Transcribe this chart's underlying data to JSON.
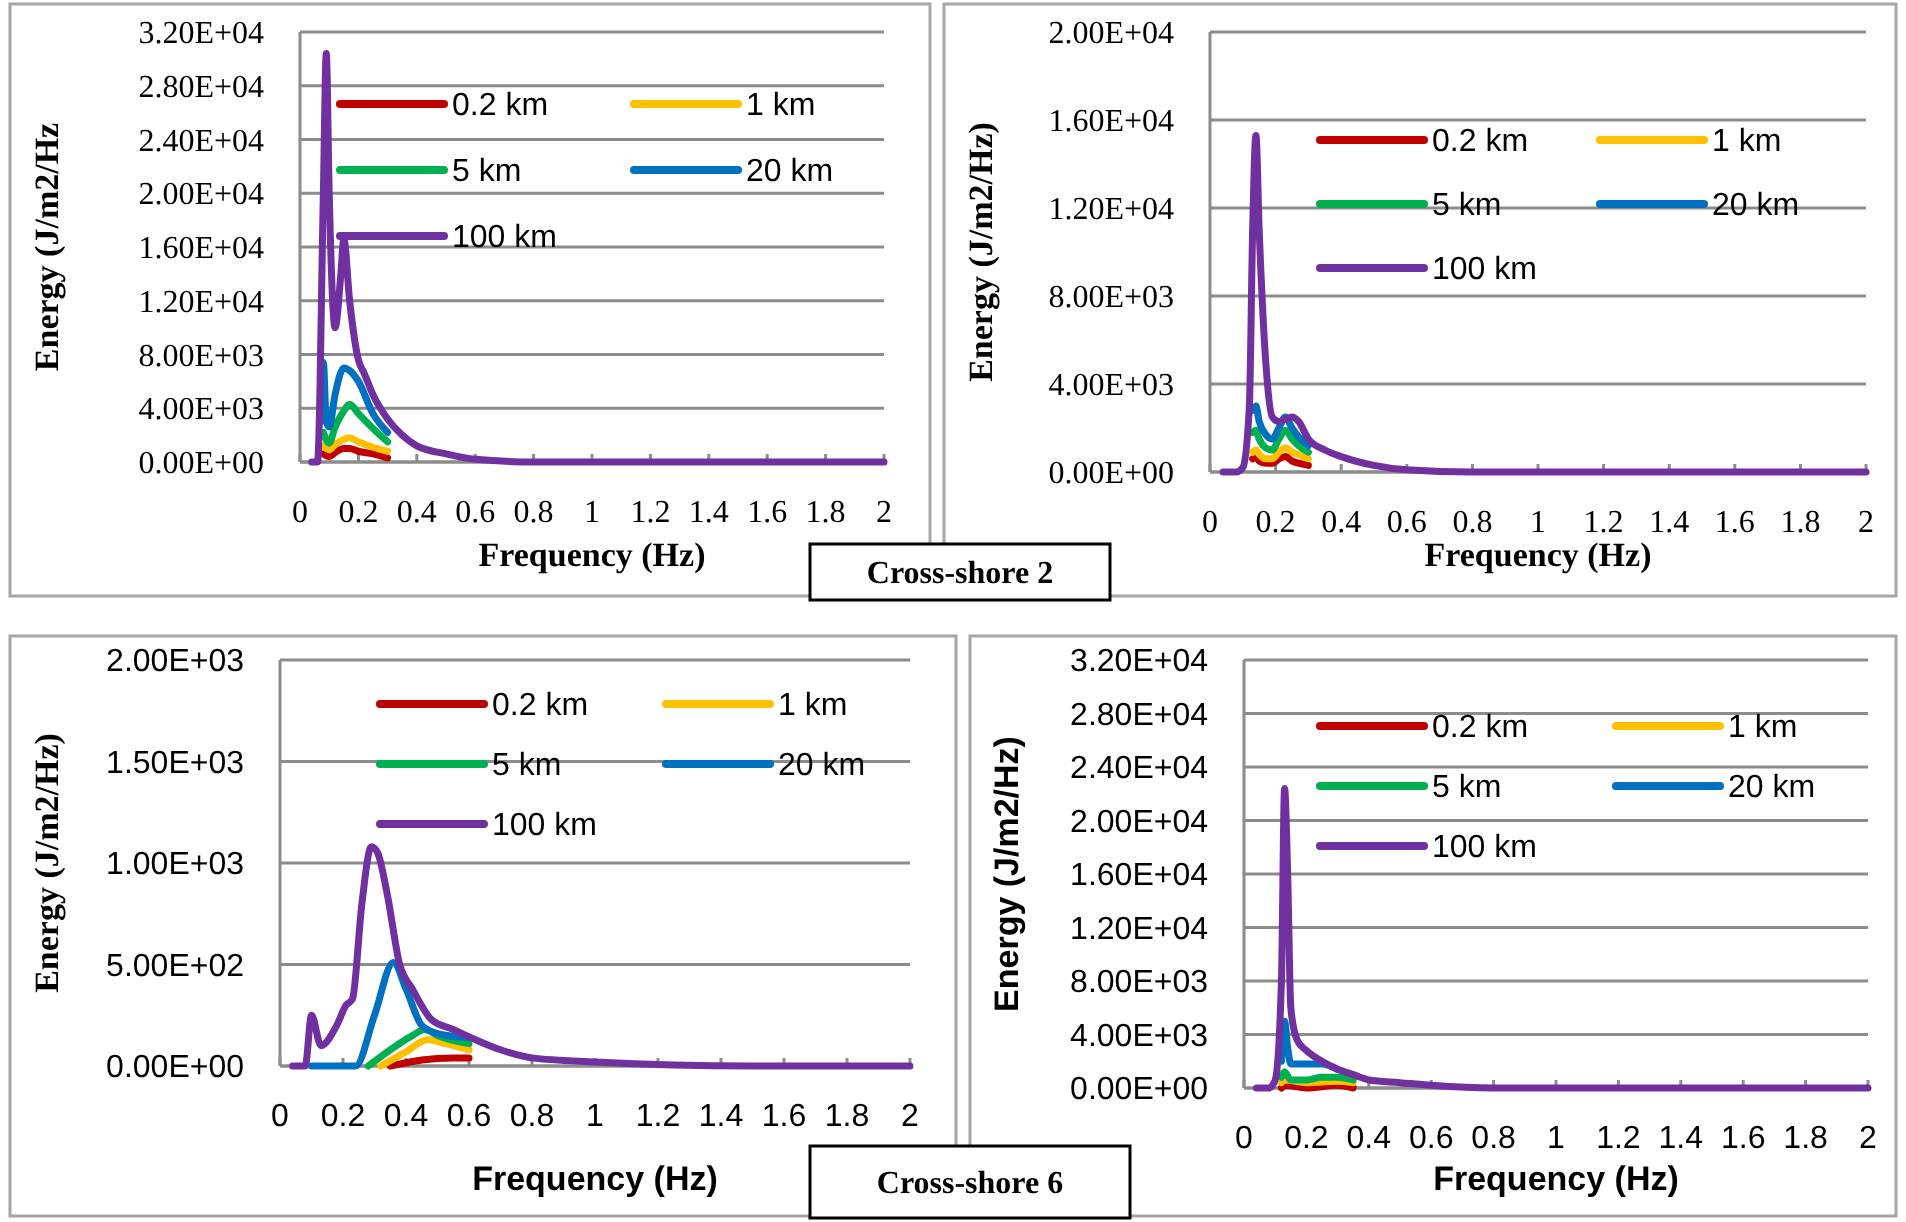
{
  "chart_data": [
    {
      "type": "line",
      "xlabel": "Frequency (Hz)",
      "ylabel": "Energy (J/m2/Hz",
      "annotations": [
        "Cross-shore 2"
      ],
      "xlim": [
        0,
        2
      ],
      "ylim": [
        0,
        32000
      ],
      "xticks": [
        0,
        0.2,
        0.4,
        0.6,
        0.8,
        1,
        1.2,
        1.4,
        1.6,
        1.8,
        2
      ],
      "yticks": [
        {
          "value": 0,
          "label": "0.00E+00"
        },
        {
          "value": 4000,
          "label": "4.00E+03"
        },
        {
          "value": 8000,
          "label": "8.00E+03"
        },
        {
          "value": 12000,
          "label": "1.20E+04"
        },
        {
          "value": 16000,
          "label": "1.60E+04"
        },
        {
          "value": 20000,
          "label": "2.00E+04"
        },
        {
          "value": 24000,
          "label": "2.40E+04"
        },
        {
          "value": 28000,
          "label": "2.80E+04"
        },
        {
          "value": 32000,
          "label": "3.20E+04"
        }
      ],
      "grid": "y",
      "legend": "top",
      "series": [
        {
          "name": "0.2 km",
          "color": "#c00000",
          "x": [
            0.08,
            0.1,
            0.12,
            0.15,
            0.17,
            0.2,
            0.25,
            0.3
          ],
          "values": [
            600,
            400,
            700,
            1000,
            1000,
            800,
            600,
            300
          ]
        },
        {
          "name": "1 km",
          "color": "#ffc000",
          "x": [
            0.08,
            0.1,
            0.12,
            0.15,
            0.17,
            0.2,
            0.25,
            0.3
          ],
          "values": [
            1200,
            900,
            1300,
            1700,
            1800,
            1500,
            1100,
            800
          ]
        },
        {
          "name": "5 km",
          "color": "#00b050",
          "x": [
            0.08,
            0.1,
            0.12,
            0.15,
            0.17,
            0.2,
            0.25,
            0.3
          ],
          "values": [
            2200,
            1400,
            2600,
            3800,
            4300,
            3600,
            2500,
            1500
          ]
        },
        {
          "name": "20 km",
          "color": "#0070c0",
          "x": [
            0.07,
            0.08,
            0.09,
            0.1,
            0.12,
            0.15,
            0.17,
            0.2,
            0.25,
            0.3
          ],
          "values": [
            3000,
            7400,
            3000,
            2600,
            5000,
            7000,
            6800,
            6000,
            3600,
            2200
          ]
        },
        {
          "name": "100 km",
          "color": "#7030a0",
          "x": [
            0.04,
            0.06,
            0.08,
            0.09,
            0.1,
            0.12,
            0.14,
            0.15,
            0.17,
            0.2,
            0.22,
            0.25,
            0.3,
            0.35,
            0.4,
            0.5,
            0.6,
            0.8,
            1,
            1.5,
            2
          ],
          "values": [
            0,
            0,
            20000,
            30400,
            20000,
            10000,
            14000,
            16600,
            12000,
            7600,
            6600,
            5000,
            3200,
            2000,
            1200,
            600,
            200,
            0,
            0,
            0,
            0
          ]
        }
      ]
    },
    {
      "type": "line",
      "xlabel": "Frequency (Hz)",
      "ylabel": "Energy (J/m2/Hz)",
      "xlim": [
        0,
        2
      ],
      "ylim": [
        0,
        20000
      ],
      "xticks": [
        0,
        0.2,
        0.4,
        0.6,
        0.8,
        1,
        1.2,
        1.4,
        1.6,
        1.8,
        2
      ],
      "yticks": [
        {
          "value": 0,
          "label": "0.00E+00"
        },
        {
          "value": 4000,
          "label": "4.00E+03"
        },
        {
          "value": 8000,
          "label": "8.00E+03"
        },
        {
          "value": 12000,
          "label": "1.20E+04"
        },
        {
          "value": 16000,
          "label": "1.60E+04"
        },
        {
          "value": 20000,
          "label": "2.00E+04"
        }
      ],
      "grid": "y",
      "legend": "top",
      "series": [
        {
          "name": "0.2 km",
          "color": "#c00000",
          "x": [
            0.13,
            0.14,
            0.15,
            0.17,
            0.19,
            0.21,
            0.23,
            0.25,
            0.27,
            0.3
          ],
          "values": [
            600,
            700,
            500,
            400,
            400,
            600,
            700,
            500,
            400,
            300
          ]
        },
        {
          "name": "1 km",
          "color": "#ffc000",
          "x": [
            0.13,
            0.14,
            0.15,
            0.17,
            0.19,
            0.21,
            0.23,
            0.25,
            0.27,
            0.3
          ],
          "values": [
            900,
            1000,
            800,
            600,
            600,
            900,
            1100,
            900,
            800,
            600
          ]
        },
        {
          "name": "5 km",
          "color": "#00b050",
          "x": [
            0.13,
            0.14,
            0.15,
            0.17,
            0.19,
            0.21,
            0.23,
            0.25,
            0.27,
            0.3
          ],
          "values": [
            1800,
            1900,
            1500,
            1100,
            1000,
            1500,
            1900,
            1500,
            1200,
            900
          ]
        },
        {
          "name": "20 km",
          "color": "#0070c0",
          "x": [
            0.13,
            0.14,
            0.15,
            0.17,
            0.19,
            0.21,
            0.23,
            0.25,
            0.27,
            0.3
          ],
          "values": [
            2800,
            3000,
            2300,
            1700,
            1500,
            2000,
            2500,
            2000,
            1600,
            1200
          ]
        },
        {
          "name": "100 km",
          "color": "#7030a0",
          "x": [
            0.04,
            0.08,
            0.1,
            0.12,
            0.13,
            0.14,
            0.15,
            0.17,
            0.19,
            0.21,
            0.23,
            0.25,
            0.27,
            0.3,
            0.35,
            0.4,
            0.5,
            0.6,
            0.8,
            1,
            1.5,
            2
          ],
          "values": [
            0,
            0,
            200,
            3000,
            11000,
            15300,
            11000,
            5000,
            2500,
            2300,
            2400,
            2500,
            2300,
            1500,
            1000,
            700,
            300,
            100,
            0,
            0,
            0,
            0
          ]
        }
      ]
    },
    {
      "type": "line",
      "xlabel": "Frequency (Hz)",
      "ylabel": "Energy (J/m2/Hz)",
      "annotations": [
        "Cross-shore 6"
      ],
      "xlim": [
        0,
        2
      ],
      "ylim": [
        0,
        2000
      ],
      "xticks": [
        0,
        0.2,
        0.4,
        0.6,
        0.8,
        1,
        1.2,
        1.4,
        1.6,
        1.8,
        2
      ],
      "yticks": [
        {
          "value": 0,
          "label": "0.00E+00"
        },
        {
          "value": 500,
          "label": "5.00E+02"
        },
        {
          "value": 1000,
          "label": "1.00E+03"
        },
        {
          "value": 1500,
          "label": "1.50E+03"
        },
        {
          "value": 2000,
          "label": "2.00E+03"
        }
      ],
      "grid": "y",
      "legend": "top",
      "series": [
        {
          "name": "0.2 km",
          "color": "#c00000",
          "x": [
            0.35,
            0.45,
            0.55,
            0.6
          ],
          "values": [
            0,
            30,
            40,
            40
          ]
        },
        {
          "name": "1 km",
          "color": "#ffc000",
          "x": [
            0.32,
            0.4,
            0.47,
            0.5,
            0.6
          ],
          "values": [
            0,
            70,
            130,
            120,
            80
          ]
        },
        {
          "name": "5 km",
          "color": "#00b050",
          "x": [
            0.28,
            0.35,
            0.42,
            0.46,
            0.5,
            0.6
          ],
          "values": [
            0,
            80,
            150,
            180,
            150,
            110
          ]
        },
        {
          "name": "20 km",
          "color": "#0070c0",
          "x": [
            0.1,
            0.24,
            0.3,
            0.36,
            0.4,
            0.45,
            0.5,
            0.6
          ],
          "values": [
            0,
            0,
            250,
            510,
            380,
            200,
            160,
            140
          ]
        },
        {
          "name": "100 km",
          "color": "#7030a0",
          "x": [
            0.04,
            0.08,
            0.1,
            0.13,
            0.18,
            0.21,
            0.23,
            0.26,
            0.29,
            0.31,
            0.34,
            0.38,
            0.42,
            0.48,
            0.55,
            0.62,
            0.7,
            0.8,
            1,
            1.5,
            2
          ],
          "values": [
            0,
            0,
            250,
            100,
            200,
            300,
            330,
            800,
            1080,
            1050,
            850,
            500,
            380,
            230,
            180,
            130,
            80,
            40,
            20,
            0,
            0
          ]
        }
      ]
    },
    {
      "type": "line",
      "xlabel": "Frequency (Hz)",
      "ylabel": "Energy (J/m2/Hz)",
      "xlim": [
        0,
        2
      ],
      "ylim": [
        0,
        32000
      ],
      "xticks": [
        0,
        0.2,
        0.4,
        0.6,
        0.8,
        1,
        1.2,
        1.4,
        1.6,
        1.8,
        2
      ],
      "yticks": [
        {
          "value": 0,
          "label": "0.00E+00"
        },
        {
          "value": 4000,
          "label": "4.00E+03"
        },
        {
          "value": 8000,
          "label": "8.00E+03"
        },
        {
          "value": 12000,
          "label": "1.20E+04"
        },
        {
          "value": 16000,
          "label": "1.60E+04"
        },
        {
          "value": 20000,
          "label": "2.00E+04"
        },
        {
          "value": 24000,
          "label": "2.40E+04"
        },
        {
          "value": 28000,
          "label": "2.80E+04"
        },
        {
          "value": 32000,
          "label": "3.20E+04"
        }
      ],
      "grid": "y",
      "legend": "top",
      "series": [
        {
          "name": "0.2 km",
          "color": "#c00000",
          "x": [
            0.12,
            0.13,
            0.2,
            0.3,
            0.35
          ],
          "values": [
            0,
            200,
            0,
            200,
            0
          ]
        },
        {
          "name": "1 km",
          "color": "#ffc000",
          "x": [
            0.12,
            0.13,
            0.2,
            0.3,
            0.35
          ],
          "values": [
            400,
            600,
            400,
            500,
            400
          ]
        },
        {
          "name": "5 km",
          "color": "#00b050",
          "x": [
            0.12,
            0.13,
            0.15,
            0.2,
            0.25,
            0.3,
            0.35
          ],
          "values": [
            800,
            1200,
            600,
            600,
            800,
            800,
            600
          ]
        },
        {
          "name": "20 km",
          "color": "#0070c0",
          "x": [
            0.12,
            0.13,
            0.14,
            0.15,
            0.17,
            0.2,
            0.25,
            0.3
          ],
          "values": [
            2000,
            5000,
            3000,
            1800,
            1800,
            1800,
            1800,
            1400
          ]
        },
        {
          "name": "100 km",
          "color": "#7030a0",
          "x": [
            0.04,
            0.08,
            0.1,
            0.12,
            0.13,
            0.14,
            0.15,
            0.17,
            0.2,
            0.25,
            0.3,
            0.35,
            0.4,
            0.5,
            0.6,
            0.8,
            1,
            1.5,
            2
          ],
          "values": [
            0,
            0,
            600,
            8000,
            22400,
            16000,
            6000,
            3600,
            2800,
            2000,
            1400,
            1000,
            600,
            400,
            200,
            0,
            0,
            0,
            0
          ]
        }
      ]
    }
  ]
}
